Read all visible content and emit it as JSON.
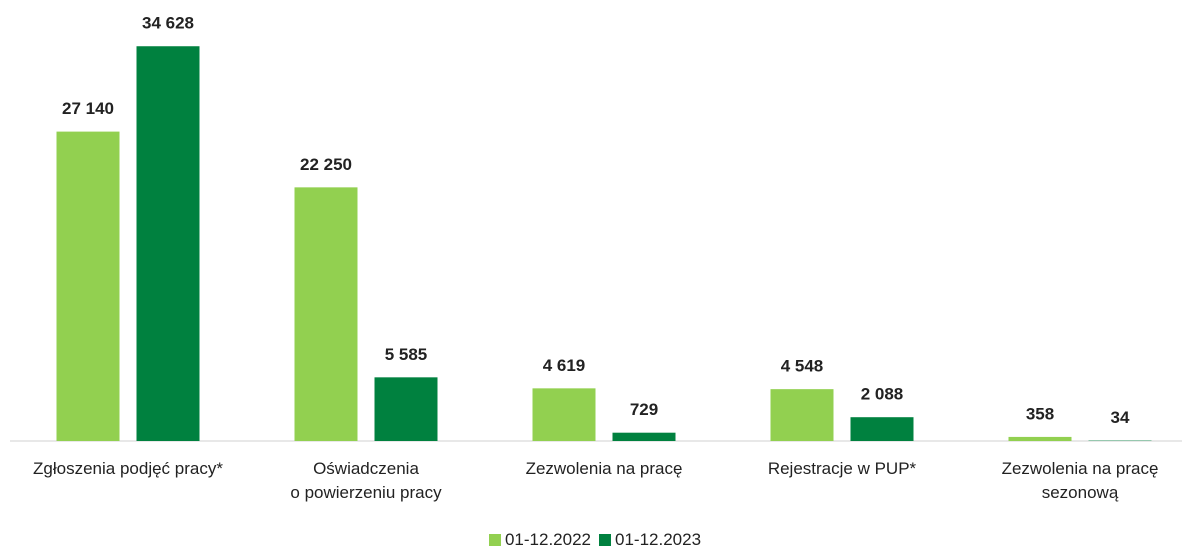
{
  "chart_data": {
    "type": "bar",
    "categories": [
      "Zgłoszenia podjęć pracy*",
      "Oświadczenia\no powierzeniu pracy",
      "Zezwolenia na pracę",
      "Rejestracje w PUP*",
      "Zezwolenia na pracę\nsezonową"
    ],
    "series": [
      {
        "name": "01-12.2022",
        "color": "#92d050",
        "values": [
          27140,
          22250,
          4619,
          4548,
          358
        ],
        "value_labels": [
          "27 140",
          "22 250",
          "4 619",
          "4 548",
          "358"
        ]
      },
      {
        "name": "01-12.2023",
        "color": "#00813f",
        "values": [
          34628,
          5585,
          729,
          2088,
          34
        ],
        "value_labels": [
          "34 628",
          "5 585",
          "729",
          "2 088",
          "34"
        ]
      }
    ],
    "ylim": [
      0,
      35000
    ],
    "legend": "bottom"
  }
}
